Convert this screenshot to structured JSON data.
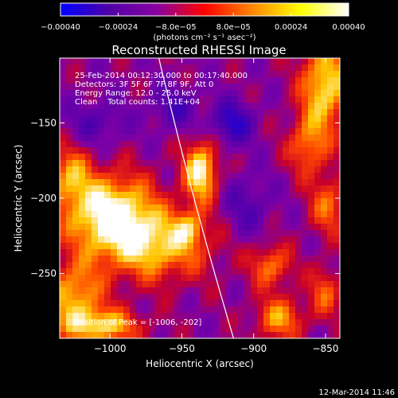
{
  "chart_data": {
    "type": "heatmap",
    "title": "Reconstructed RHESSI Image",
    "xlabel": "Heliocentric X (arcsec)",
    "ylabel": "Heliocentric Y (arcsec)",
    "xlim": [
      -1035,
      -840
    ],
    "ylim": [
      -293,
      -107
    ],
    "x_ticks": [
      {
        "value": -1000,
        "label": "−1000"
      },
      {
        "value": -950,
        "label": "−950"
      },
      {
        "value": -900,
        "label": "−900"
      },
      {
        "value": -850,
        "label": "−850"
      }
    ],
    "y_ticks": [
      {
        "value": -150,
        "label": "−150"
      },
      {
        "value": -200,
        "label": "−200"
      },
      {
        "value": -250,
        "label": "−250"
      }
    ],
    "colorbar": {
      "range": [
        -0.0004,
        0.0004
      ],
      "ticks": [
        {
          "value": -0.0004,
          "label": "−0.00040"
        },
        {
          "value": -0.00024,
          "label": "−0.00024"
        },
        {
          "value": -8e-05,
          "label": "−8.0e−05"
        },
        {
          "value": 8e-05,
          "label": "8.0e−05"
        },
        {
          "value": 0.00024,
          "label": "0.00024"
        },
        {
          "value": 0.0004,
          "label": "0.00040"
        }
      ],
      "unit_label": "(photons cm⁻² s⁻¹ asec⁻²)",
      "colors": [
        "#0000ff",
        "#5000a8",
        "#8800a0",
        "#ff0000",
        "#ff8800",
        "#ffff00",
        "#ffffff"
      ]
    },
    "annotations": [
      "25-Feb-2014 00:12:30.000 to 00:17:40.000",
      "Detectors: 3F 5F 6F 7F 8F 9F, Att 0",
      "Energy Range: 12.0 - 25.0 keV",
      "Clean    Total counts: 1.41E+04"
    ],
    "peak_label": "Position of Peak = [-1006, -202]",
    "limb_line": {
      "color": "#ffffff"
    },
    "sources": [
      {
        "x": -1000,
        "y": -210,
        "sx": 22,
        "sy": 18,
        "amp": 1.0
      },
      {
        "x": -968,
        "y": -232,
        "sx": 26,
        "sy": 16,
        "amp": 0.72
      },
      {
        "x": -1028,
        "y": -185,
        "sx": 10,
        "sy": 14,
        "amp": 0.55
      },
      {
        "x": -1025,
        "y": -265,
        "sx": 14,
        "sy": 16,
        "amp": 0.7
      },
      {
        "x": -1005,
        "y": -285,
        "sx": 18,
        "sy": 8,
        "amp": 0.75
      },
      {
        "x": -937,
        "y": -182,
        "sx": 8,
        "sy": 14,
        "amp": 0.95
      },
      {
        "x": -945,
        "y": -220,
        "sx": 7,
        "sy": 8,
        "amp": 0.45
      },
      {
        "x": -850,
        "y": -125,
        "sx": 12,
        "sy": 20,
        "amp": 0.85
      },
      {
        "x": -862,
        "y": -165,
        "sx": 10,
        "sy": 14,
        "amp": 0.55
      },
      {
        "x": -848,
        "y": -205,
        "sx": 9,
        "sy": 14,
        "amp": 0.5
      },
      {
        "x": -888,
        "y": -245,
        "sx": 10,
        "sy": 10,
        "amp": 0.55
      },
      {
        "x": -882,
        "y": -280,
        "sx": 12,
        "sy": 10,
        "amp": 0.6
      },
      {
        "x": -850,
        "y": -262,
        "sx": 8,
        "sy": 12,
        "amp": 0.45
      },
      {
        "x": -915,
        "y": -150,
        "sx": 10,
        "sy": 10,
        "amp": -0.55
      },
      {
        "x": -955,
        "y": -140,
        "sx": 12,
        "sy": 10,
        "amp": -0.35
      },
      {
        "x": -1010,
        "y": -150,
        "sx": 14,
        "sy": 10,
        "amp": -0.3
      },
      {
        "x": -905,
        "y": -205,
        "sx": 12,
        "sy": 14,
        "amp": -0.3
      }
    ]
  },
  "footer": {
    "timestamp": "12-Mar-2014 11:46"
  }
}
